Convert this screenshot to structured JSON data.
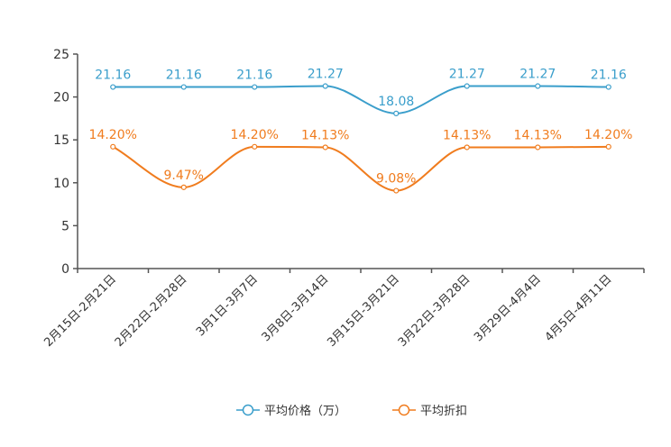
{
  "chart_data": {
    "type": "line",
    "categories": [
      "2月15日-2月21日",
      "2月22日-2月28日",
      "3月1日-3月7日",
      "3月8日-3月14日",
      "3月15日-3月21日",
      "3月22日-3月28日",
      "3月29日-4月4日",
      "4月5日-4月11日"
    ],
    "ylim": [
      0,
      25
    ],
    "yticks": [
      "0",
      "5",
      "10",
      "15",
      "20",
      "25"
    ],
    "series": [
      {
        "name": "平均价格（万）",
        "color": "#3a9ecb",
        "values": [
          21.16,
          21.16,
          21.16,
          21.27,
          18.08,
          21.27,
          21.27,
          21.16
        ],
        "labels": [
          "21.16",
          "21.16",
          "21.16",
          "21.27",
          "18.08",
          "21.27",
          "21.27",
          "21.16"
        ]
      },
      {
        "name": "平均折扣",
        "color": "#f07c1e",
        "values": [
          14.2,
          9.47,
          14.2,
          14.13,
          9.08,
          14.13,
          14.13,
          14.2
        ],
        "labels": [
          "14.20%",
          "9.47%",
          "14.20%",
          "14.13%",
          "9.08%",
          "14.13%",
          "14.13%",
          "14.20%"
        ]
      }
    ],
    "legend_position": "bottom"
  }
}
